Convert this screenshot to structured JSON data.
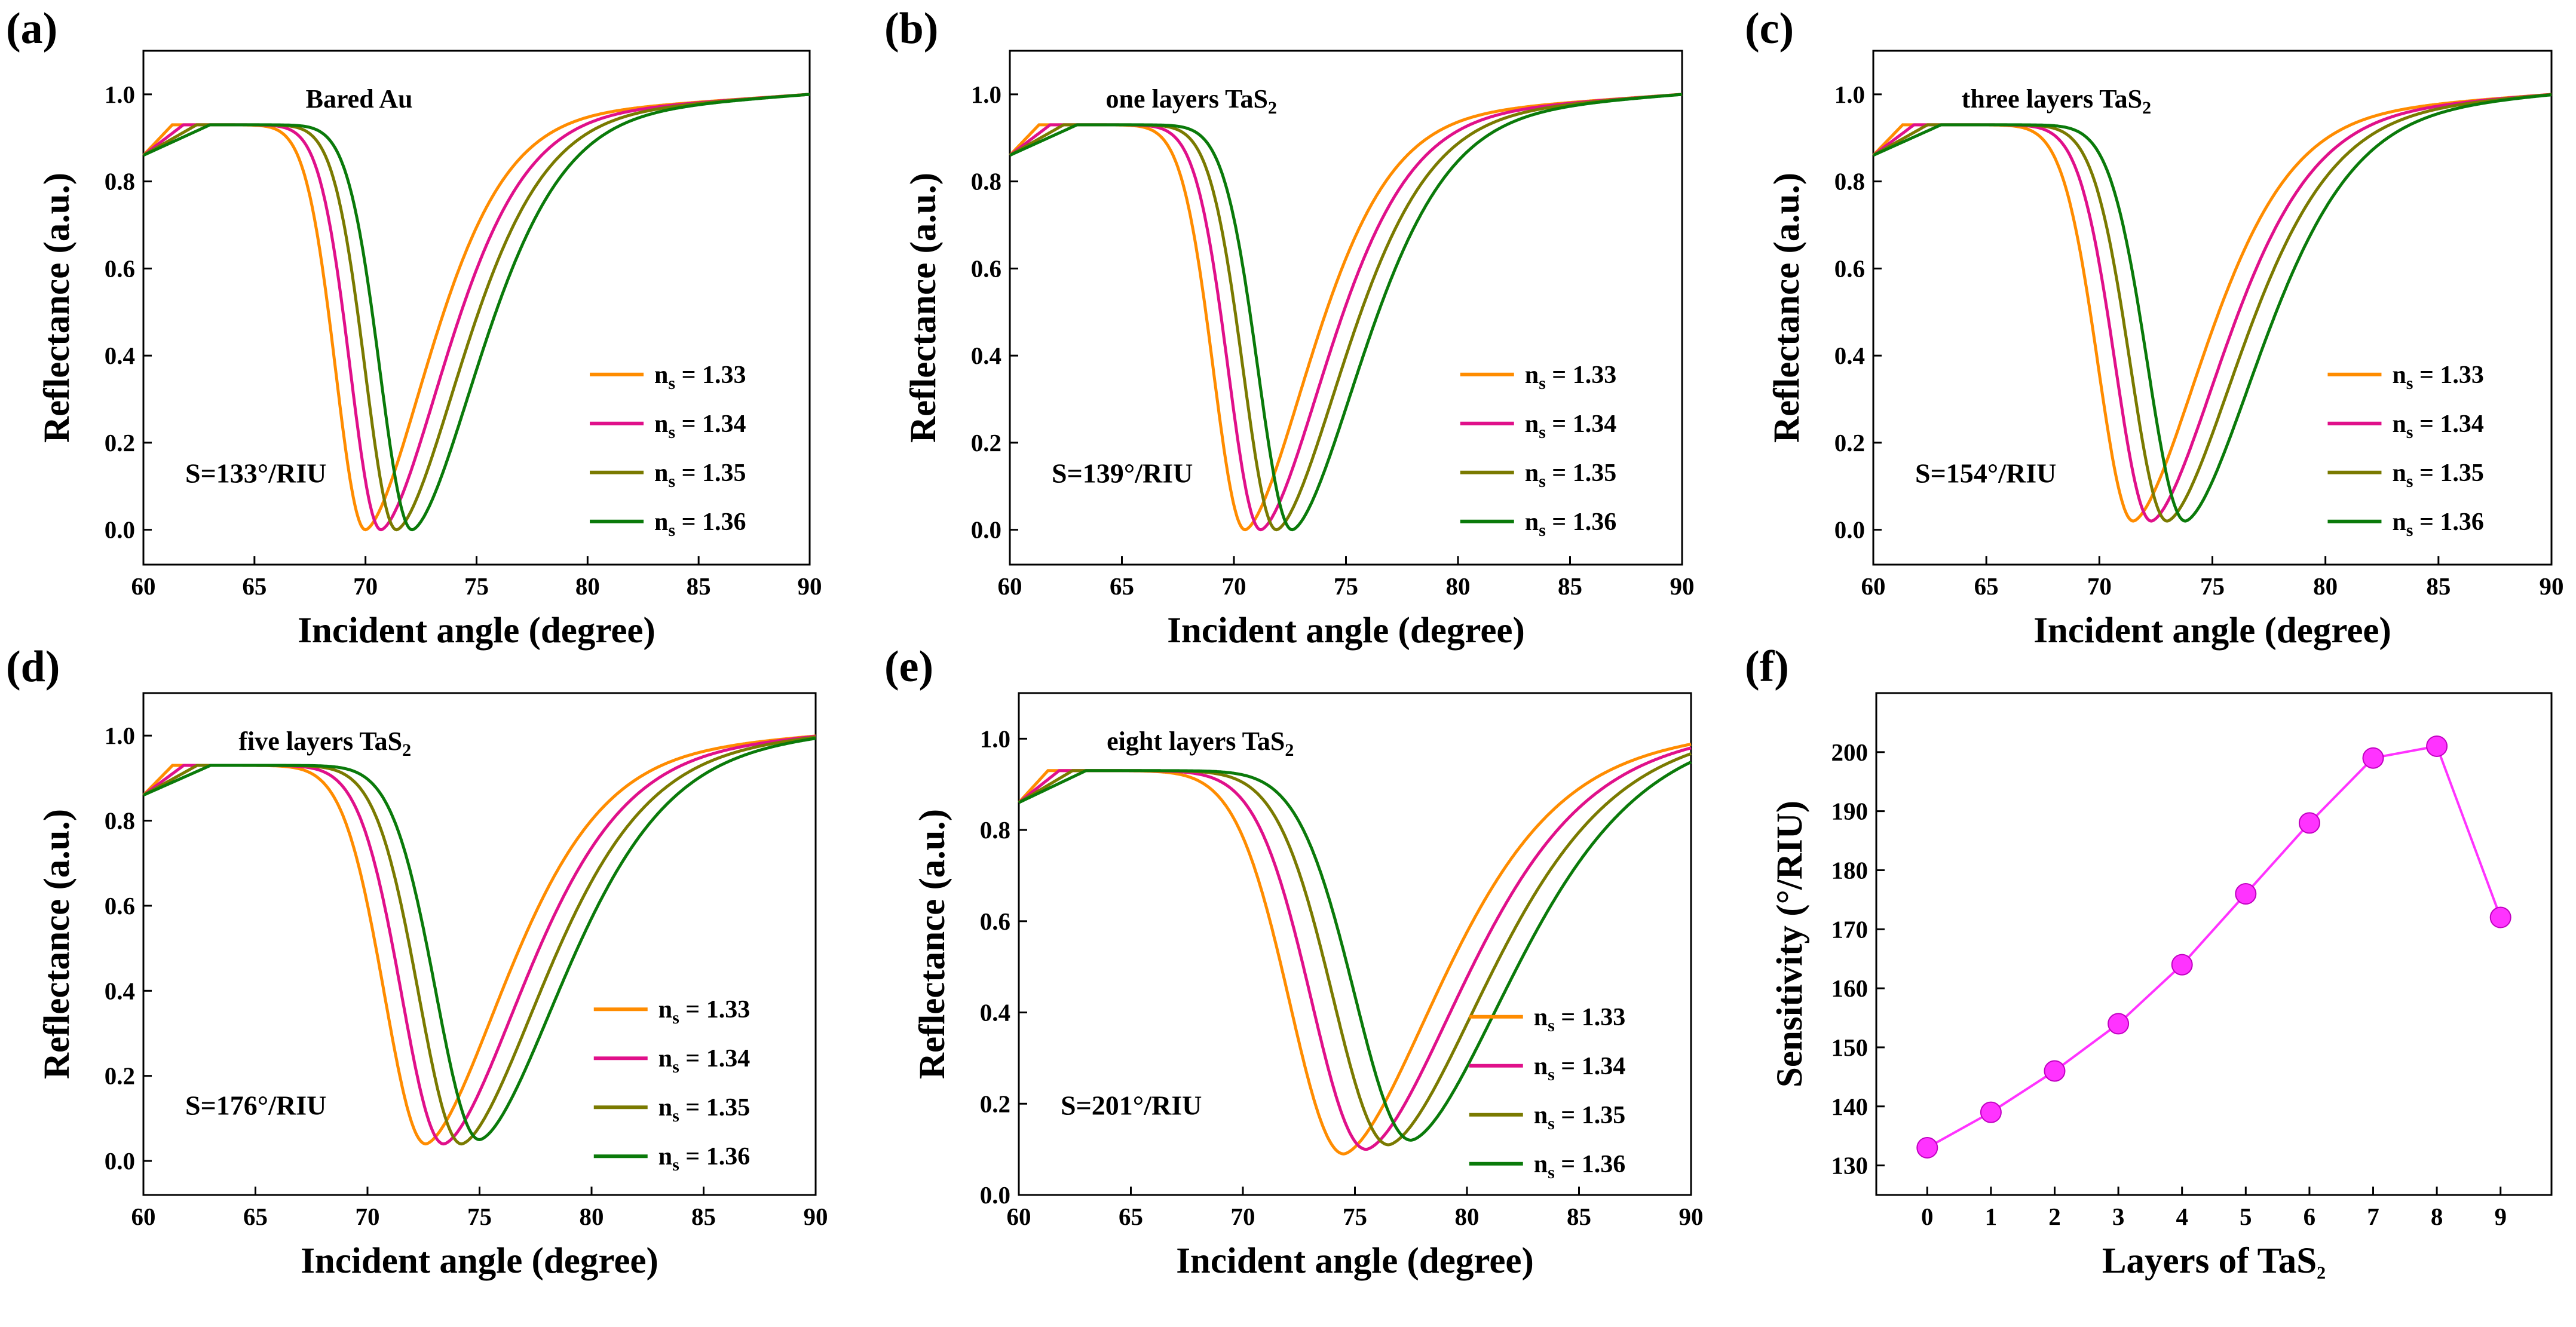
{
  "chart_data": [
    {
      "type": "line",
      "panel": "(a)",
      "title": "Bared Au",
      "title_sub": "",
      "xlabel": "Incident angle (degree)",
      "ylabel": "Reflectance (a.u.)",
      "xlim": [
        60,
        90
      ],
      "ylim": [
        -0.08,
        1.1
      ],
      "xticks": [
        60,
        65,
        70,
        75,
        80,
        85,
        90
      ],
      "yticks": [
        0.0,
        0.2,
        0.4,
        0.6,
        0.8,
        1.0
      ],
      "sensitivity_label": "S=133°/RIU",
      "legend": [
        {
          "sub": "s",
          "label": " = 1.33",
          "color": "#FF8C00"
        },
        {
          "sub": "s",
          "label": " = 1.34",
          "color": "#E0108A"
        },
        {
          "sub": "s",
          "label": " = 1.35",
          "color": "#7A7A00"
        },
        {
          "sub": "s",
          "label": " = 1.36",
          "color": "#0A7A0A"
        }
      ],
      "series": [
        {
          "name": "n_s = 1.33",
          "color": "#FF8C00",
          "resonance_angle": 70.0,
          "rmin": 0.0,
          "rmax": 0.93,
          "width": 1.9,
          "skew": 4.2,
          "kink": 61.3
        },
        {
          "name": "n_s = 1.34",
          "color": "#E0108A",
          "resonance_angle": 70.7,
          "rmin": 0.0,
          "rmax": 0.93,
          "width": 1.95,
          "skew": 4.3,
          "kink": 61.8
        },
        {
          "name": "n_s = 1.35",
          "color": "#7A7A00",
          "resonance_angle": 71.4,
          "rmin": 0.0,
          "rmax": 0.93,
          "width": 2.0,
          "skew": 4.4,
          "kink": 62.4
        },
        {
          "name": "n_s = 1.36",
          "color": "#0A7A0A",
          "resonance_angle": 72.1,
          "rmin": 0.0,
          "rmax": 0.93,
          "width": 2.05,
          "skew": 4.5,
          "kink": 63.0
        }
      ]
    },
    {
      "type": "line",
      "panel": "(b)",
      "title": "one layers TaS",
      "title_sub": "2",
      "xlabel": "Incident angle (degree)",
      "ylabel": "Reflectance (a.u.)",
      "xlim": [
        60,
        90
      ],
      "ylim": [
        -0.08,
        1.1
      ],
      "xticks": [
        60,
        65,
        70,
        75,
        80,
        85,
        90
      ],
      "yticks": [
        0.0,
        0.2,
        0.4,
        0.6,
        0.8,
        1.0
      ],
      "sensitivity_label": "S=139°/RIU",
      "legend": [
        {
          "sub": "s",
          "label": " = 1.33",
          "color": "#FF8C00"
        },
        {
          "sub": "s",
          "label": " = 1.34",
          "color": "#E0108A"
        },
        {
          "sub": "s",
          "label": " = 1.35",
          "color": "#7A7A00"
        },
        {
          "sub": "s",
          "label": " = 1.36",
          "color": "#0A7A0A"
        }
      ],
      "series": [
        {
          "name": "n_s = 1.33",
          "color": "#FF8C00",
          "resonance_angle": 70.5,
          "rmin": 0.0,
          "rmax": 0.93,
          "width": 2.0,
          "skew": 4.3,
          "kink": 61.3
        },
        {
          "name": "n_s = 1.34",
          "color": "#E0108A",
          "resonance_angle": 71.2,
          "rmin": 0.0,
          "rmax": 0.93,
          "width": 2.05,
          "skew": 4.4,
          "kink": 61.8
        },
        {
          "name": "n_s = 1.35",
          "color": "#7A7A00",
          "resonance_angle": 71.9,
          "rmin": 0.0,
          "rmax": 0.93,
          "width": 2.1,
          "skew": 4.5,
          "kink": 62.4
        },
        {
          "name": "n_s = 1.36",
          "color": "#0A7A0A",
          "resonance_angle": 72.6,
          "rmin": 0.0,
          "rmax": 0.93,
          "width": 2.15,
          "skew": 4.6,
          "kink": 63.0
        }
      ]
    },
    {
      "type": "line",
      "panel": "(c)",
      "title": "three layers TaS",
      "title_sub": "2",
      "xlabel": "Incident angle (degree)",
      "ylabel": "Reflectance (a.u.)",
      "xlim": [
        60,
        90
      ],
      "ylim": [
        -0.08,
        1.1
      ],
      "xticks": [
        60,
        65,
        70,
        75,
        80,
        85,
        90
      ],
      "yticks": [
        0.0,
        0.2,
        0.4,
        0.6,
        0.8,
        1.0
      ],
      "sensitivity_label": "S=154°/RIU",
      "legend": [
        {
          "sub": "s",
          "label": " = 1.33",
          "color": "#FF8C00"
        },
        {
          "sub": "s",
          "label": " = 1.34",
          "color": "#E0108A"
        },
        {
          "sub": "s",
          "label": " = 1.35",
          "color": "#7A7A00"
        },
        {
          "sub": "s",
          "label": " = 1.36",
          "color": "#0A7A0A"
        }
      ],
      "series": [
        {
          "name": "n_s = 1.33",
          "color": "#FF8C00",
          "resonance_angle": 71.5,
          "rmin": 0.02,
          "rmax": 0.93,
          "width": 2.2,
          "skew": 4.6,
          "kink": 61.3
        },
        {
          "name": "n_s = 1.34",
          "color": "#E0108A",
          "resonance_angle": 72.3,
          "rmin": 0.02,
          "rmax": 0.93,
          "width": 2.25,
          "skew": 4.7,
          "kink": 61.8
        },
        {
          "name": "n_s = 1.35",
          "color": "#7A7A00",
          "resonance_angle": 73.0,
          "rmin": 0.02,
          "rmax": 0.93,
          "width": 2.3,
          "skew": 4.8,
          "kink": 62.4
        },
        {
          "name": "n_s = 1.36",
          "color": "#0A7A0A",
          "resonance_angle": 73.8,
          "rmin": 0.02,
          "rmax": 0.93,
          "width": 2.35,
          "skew": 4.9,
          "kink": 63.0
        }
      ]
    },
    {
      "type": "line",
      "panel": "(d)",
      "title": "five layers TaS",
      "title_sub": "2",
      "xlabel": "Incident angle (degree)",
      "ylabel": "Reflectance (a.u.)",
      "xlim": [
        60,
        90
      ],
      "ylim": [
        -0.08,
        1.1
      ],
      "xticks": [
        60,
        65,
        70,
        75,
        80,
        85,
        90
      ],
      "yticks": [
        0.0,
        0.2,
        0.4,
        0.6,
        0.8,
        1.0
      ],
      "sensitivity_label": "S=176°/RIU",
      "legend": [
        {
          "sub": "s",
          "label": " = 1.33",
          "color": "#FF8C00"
        },
        {
          "sub": "s",
          "label": " = 1.34",
          "color": "#E0108A"
        },
        {
          "sub": "s",
          "label": " = 1.35",
          "color": "#7A7A00"
        },
        {
          "sub": "s",
          "label": " = 1.36",
          "color": "#0A7A0A"
        }
      ],
      "series": [
        {
          "name": "n_s = 1.33",
          "color": "#FF8C00",
          "resonance_angle": 72.6,
          "rmin": 0.04,
          "rmax": 0.93,
          "width": 2.6,
          "skew": 5.2,
          "kink": 61.3
        },
        {
          "name": "n_s = 1.34",
          "color": "#E0108A",
          "resonance_angle": 73.4,
          "rmin": 0.04,
          "rmax": 0.93,
          "width": 2.65,
          "skew": 5.3,
          "kink": 61.8
        },
        {
          "name": "n_s = 1.35",
          "color": "#7A7A00",
          "resonance_angle": 74.2,
          "rmin": 0.04,
          "rmax": 0.93,
          "width": 2.7,
          "skew": 5.4,
          "kink": 62.4
        },
        {
          "name": "n_s = 1.36",
          "color": "#0A7A0A",
          "resonance_angle": 75.0,
          "rmin": 0.05,
          "rmax": 0.93,
          "width": 2.75,
          "skew": 5.5,
          "kink": 63.0
        }
      ]
    },
    {
      "type": "line",
      "panel": "(e)",
      "title": "eight layers TaS",
      "title_sub": "2",
      "xlabel": "Incident angle (degree)",
      "ylabel": "Reflectance (a.u.)",
      "xlim": [
        60,
        90
      ],
      "ylim": [
        0.0,
        1.1
      ],
      "xticks": [
        60,
        65,
        70,
        75,
        80,
        85,
        90
      ],
      "yticks": [
        0.0,
        0.2,
        0.4,
        0.6,
        0.8,
        1.0
      ],
      "sensitivity_label": "S=201°/RIU",
      "legend": [
        {
          "sub": "s",
          "label": " = 1.33",
          "color": "#FF8C00"
        },
        {
          "sub": "s",
          "label": " = 1.34",
          "color": "#E0108A"
        },
        {
          "sub": "s",
          "label": " = 1.35",
          "color": "#7A7A00"
        },
        {
          "sub": "s",
          "label": " = 1.36",
          "color": "#0A7A0A"
        }
      ],
      "series": [
        {
          "name": "n_s = 1.33",
          "color": "#FF8C00",
          "resonance_angle": 74.5,
          "rmin": 0.09,
          "rmax": 0.93,
          "width": 3.4,
          "skew": 6.2,
          "kink": 61.3
        },
        {
          "name": "n_s = 1.34",
          "color": "#E0108A",
          "resonance_angle": 75.5,
          "rmin": 0.1,
          "rmax": 0.93,
          "width": 3.45,
          "skew": 6.3,
          "kink": 61.8
        },
        {
          "name": "n_s = 1.35",
          "color": "#7A7A00",
          "resonance_angle": 76.5,
          "rmin": 0.11,
          "rmax": 0.93,
          "width": 3.5,
          "skew": 6.4,
          "kink": 62.4
        },
        {
          "name": "n_s = 1.36",
          "color": "#0A7A0A",
          "resonance_angle": 77.5,
          "rmin": 0.12,
          "rmax": 0.93,
          "width": 3.55,
          "skew": 6.5,
          "kink": 63.0
        }
      ]
    },
    {
      "type": "line",
      "panel": "(f)",
      "xlabel": "Layers of TaS",
      "xlabel_sub": "2",
      "ylabel": "Sensitivity (°/RIU)",
      "xlim": [
        -0.8,
        9.8
      ],
      "ylim": [
        125,
        210
      ],
      "xticks": [
        0,
        1,
        2,
        3,
        4,
        5,
        6,
        7,
        8,
        9
      ],
      "yticks": [
        130,
        140,
        150,
        160,
        170,
        180,
        190,
        200
      ],
      "color": "#FF33FF",
      "x": [
        0,
        1,
        2,
        3,
        4,
        5,
        6,
        7,
        8,
        9
      ],
      "y": [
        133,
        139,
        146,
        154,
        164,
        176,
        188,
        199,
        201,
        172
      ]
    }
  ]
}
